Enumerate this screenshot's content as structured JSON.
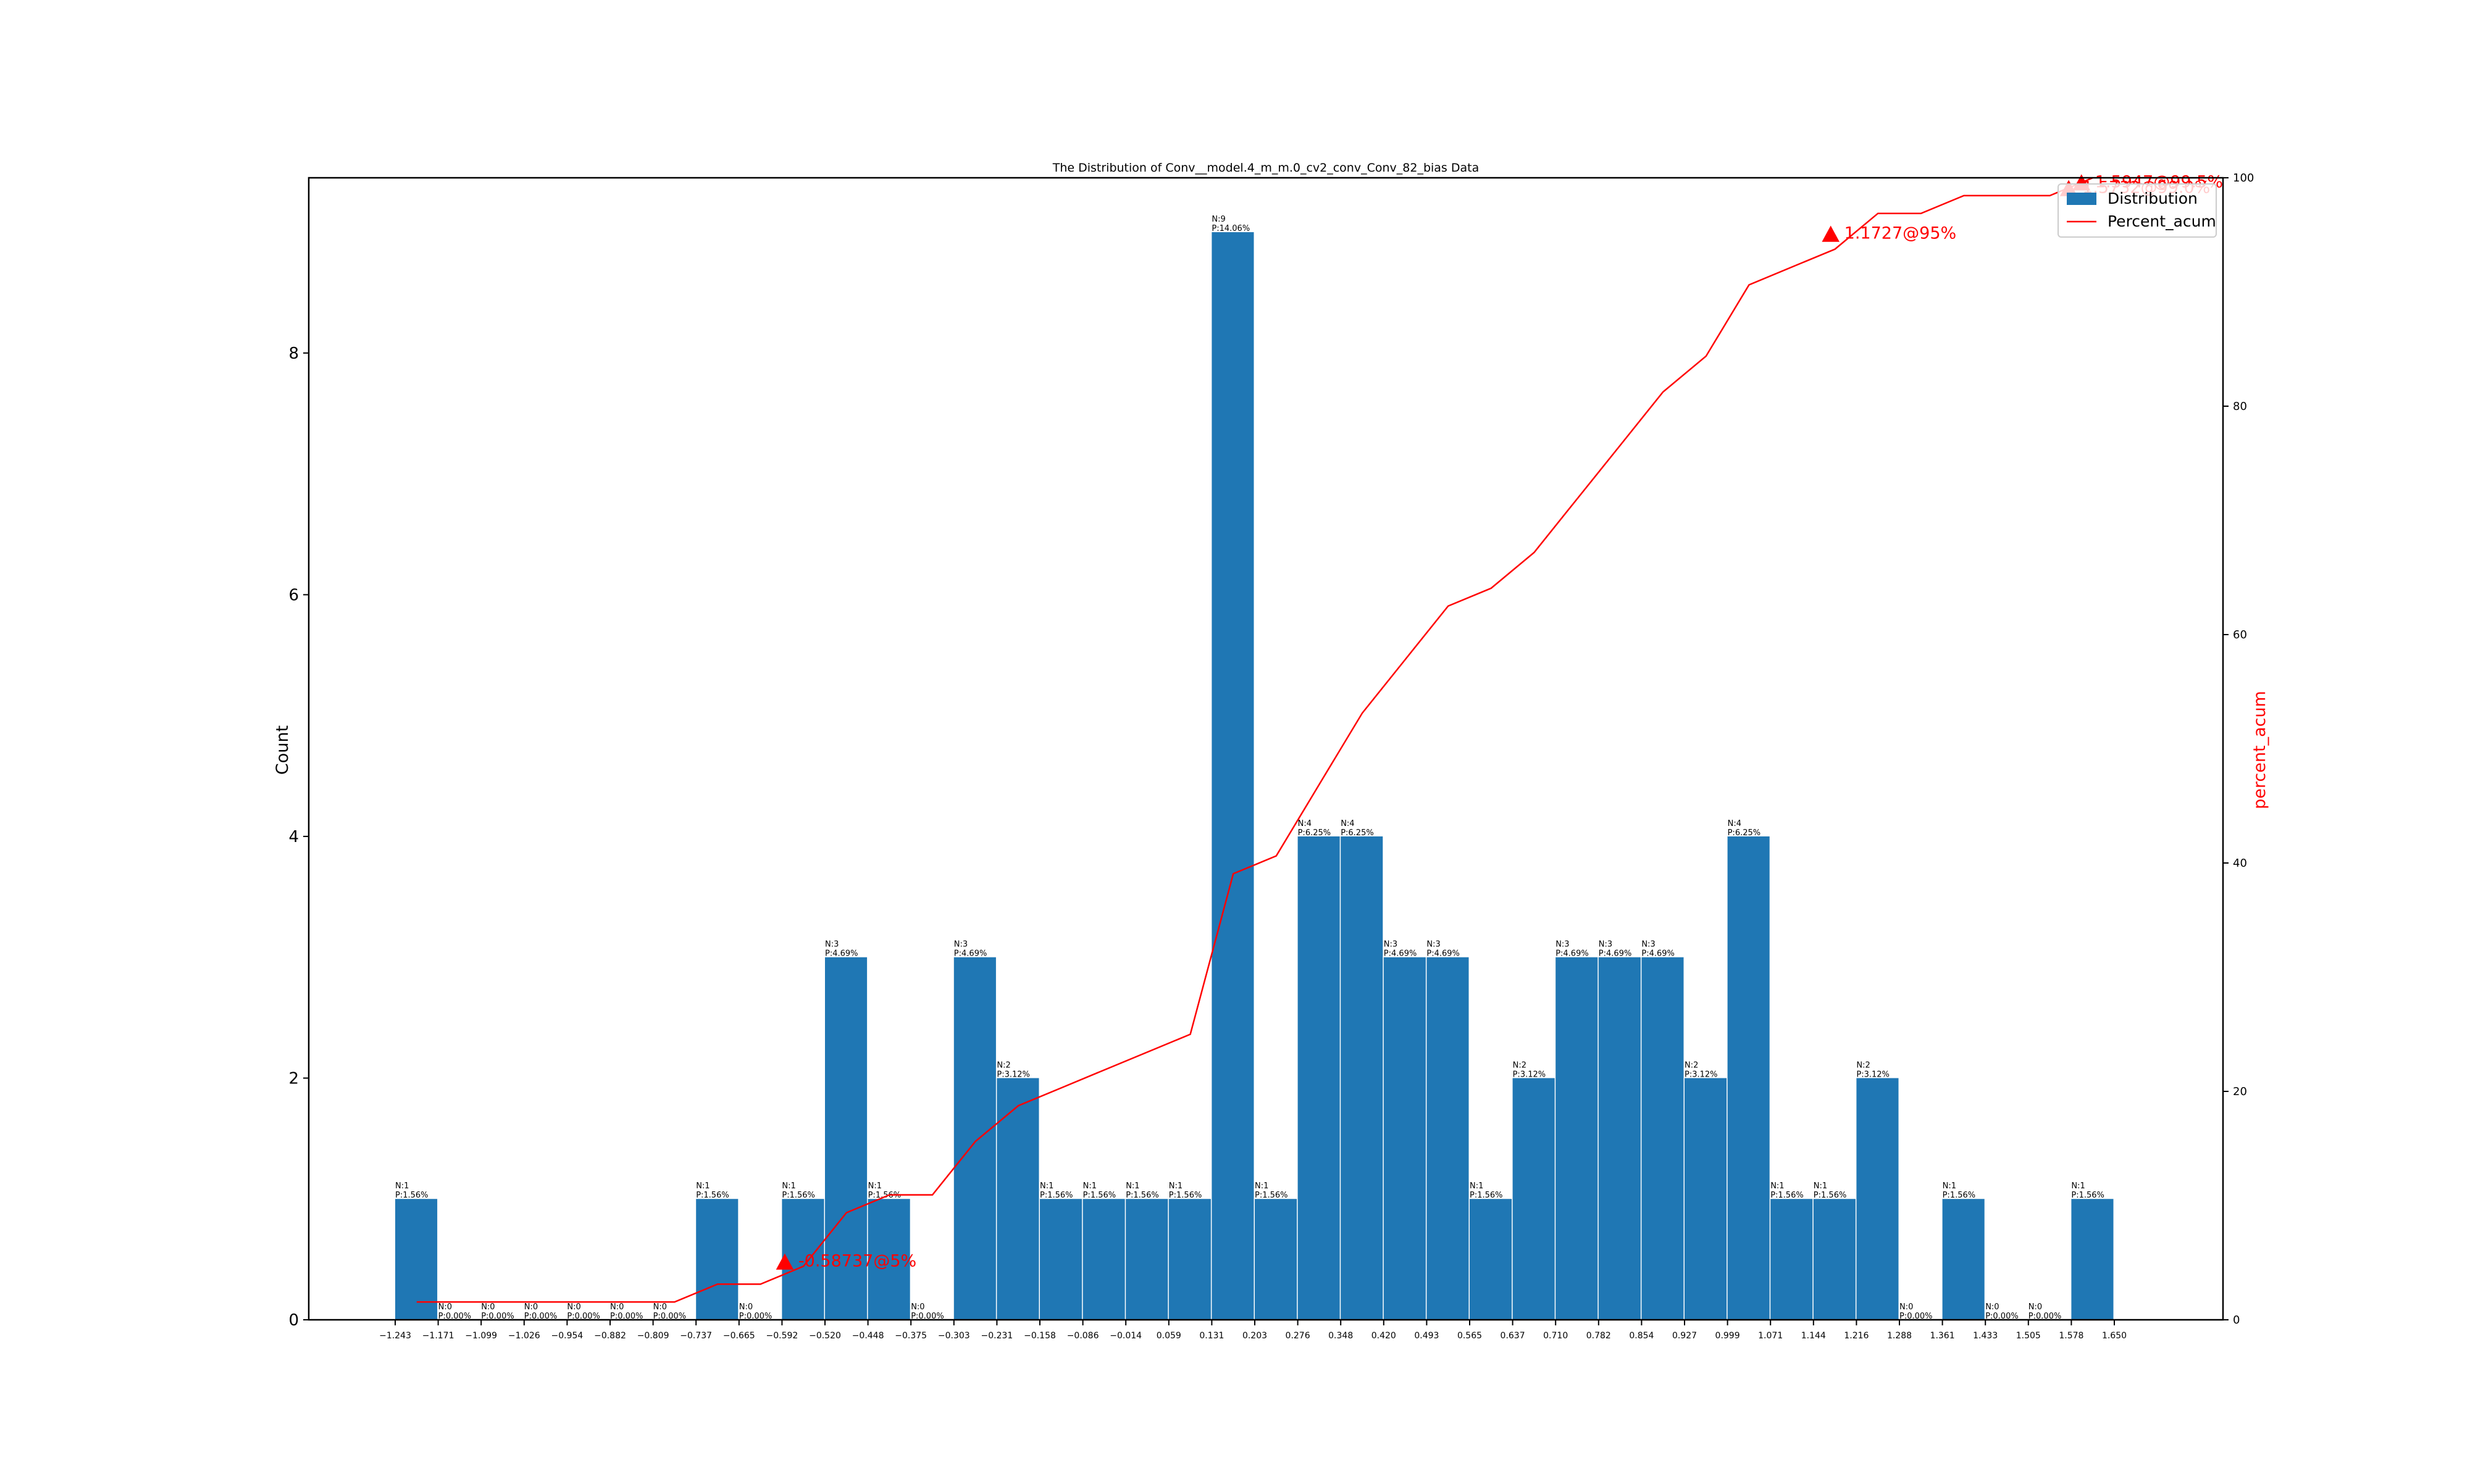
{
  "chart_data": {
    "type": "bar",
    "title": "The Distribution of Conv__model.4_m_m.0_cv2_conv_Conv_82_bias Data",
    "ylabel": "Count",
    "y2label": "percent_acum",
    "ylim": [
      0,
      9.45
    ],
    "y2lim": [
      0,
      100
    ],
    "y_ticks": [
      0,
      2,
      4,
      6,
      8
    ],
    "y2_ticks": [
      0,
      20,
      40,
      60,
      80,
      100
    ],
    "x_ticks": [
      "−1.243",
      "−1.171",
      "−1.099",
      "−1.026",
      "−0.954",
      "−0.882",
      "−0.809",
      "−0.737",
      "−0.665",
      "−0.592",
      "−0.520",
      "−0.448",
      "−0.375",
      "−0.303",
      "−0.231",
      "−0.158",
      "−0.086",
      "−0.014",
      "0.059",
      "0.131",
      "0.203",
      "0.276",
      "0.348",
      "0.420",
      "0.493",
      "0.565",
      "0.637",
      "0.710",
      "0.782",
      "0.854",
      "0.927",
      "0.999",
      "1.071",
      "1.144",
      "1.216",
      "1.288",
      "1.361",
      "1.433",
      "1.505",
      "1.578",
      "1.650"
    ],
    "counts": [
      1,
      0,
      0,
      0,
      0,
      0,
      0,
      1,
      0,
      1,
      3,
      1,
      0,
      3,
      2,
      1,
      1,
      1,
      1,
      9,
      1,
      4,
      4,
      3,
      3,
      1,
      2,
      3,
      3,
      3,
      2,
      4,
      1,
      1,
      2,
      0,
      1,
      0,
      0,
      1
    ],
    "bar_labels_n": [
      "N:1",
      "N:0",
      "N:0",
      "N:0",
      "N:0",
      "N:0",
      "N:0",
      "N:1",
      "N:0",
      "N:1",
      "N:3",
      "N:1",
      "N:0",
      "N:3",
      "N:2",
      "N:1",
      "N:1",
      "N:1",
      "N:1",
      "N:9",
      "N:1",
      "N:4",
      "N:4",
      "N:3",
      "N:3",
      "N:1",
      "N:2",
      "N:3",
      "N:3",
      "N:3",
      "N:2",
      "N:4",
      "N:1",
      "N:1",
      "N:2",
      "N:0",
      "N:1",
      "N:0",
      "N:0",
      "N:1"
    ],
    "bar_labels_p": [
      "P:1.56%",
      "P:0.00%",
      "P:0.00%",
      "P:0.00%",
      "P:0.00%",
      "P:0.00%",
      "P:0.00%",
      "P:1.56%",
      "P:0.00%",
      "P:1.56%",
      "P:4.69%",
      "P:1.56%",
      "P:0.00%",
      "P:4.69%",
      "P:3.12%",
      "P:1.56%",
      "P:1.56%",
      "P:1.56%",
      "P:1.56%",
      "P:14.06%",
      "P:1.56%",
      "P:6.25%",
      "P:6.25%",
      "P:4.69%",
      "P:4.69%",
      "P:1.56%",
      "P:3.12%",
      "P:4.69%",
      "P:4.69%",
      "P:4.69%",
      "P:3.12%",
      "P:6.25%",
      "P:1.56%",
      "P:1.56%",
      "P:3.12%",
      "P:0.00%",
      "P:1.56%",
      "P:0.00%",
      "P:0.00%",
      "P:1.56%"
    ],
    "percent_acum": [
      1.56,
      1.56,
      1.56,
      1.56,
      1.56,
      1.56,
      1.56,
      3.12,
      3.12,
      4.69,
      9.38,
      10.94,
      10.94,
      15.62,
      18.75,
      20.31,
      21.88,
      23.44,
      25.0,
      39.06,
      40.62,
      46.88,
      53.12,
      57.81,
      62.5,
      64.06,
      67.19,
      71.88,
      76.56,
      81.25,
      84.38,
      90.62,
      92.19,
      93.75,
      96.88,
      96.88,
      98.44,
      98.44,
      98.44,
      100.0
    ],
    "markers": [
      {
        "label": "-0.58737@5%",
        "x": -0.58737,
        "pct": 5
      },
      {
        "label": "1.1727@95%",
        "x": 1.1727,
        "pct": 95
      },
      {
        "label": "1.5947@99.5%",
        "x": 1.5947,
        "pct": 99.5
      },
      {
        "label": "1.5732@99.0%",
        "x": 1.5732,
        "pct": 99.0
      }
    ],
    "legend": [
      "Distribution",
      "Percent_acum"
    ],
    "legend_position": "top-right",
    "colors": {
      "bars": "#1f77b4",
      "line": "#ff0000",
      "marker": "#ff0000",
      "y2label": "#ff0000"
    }
  }
}
